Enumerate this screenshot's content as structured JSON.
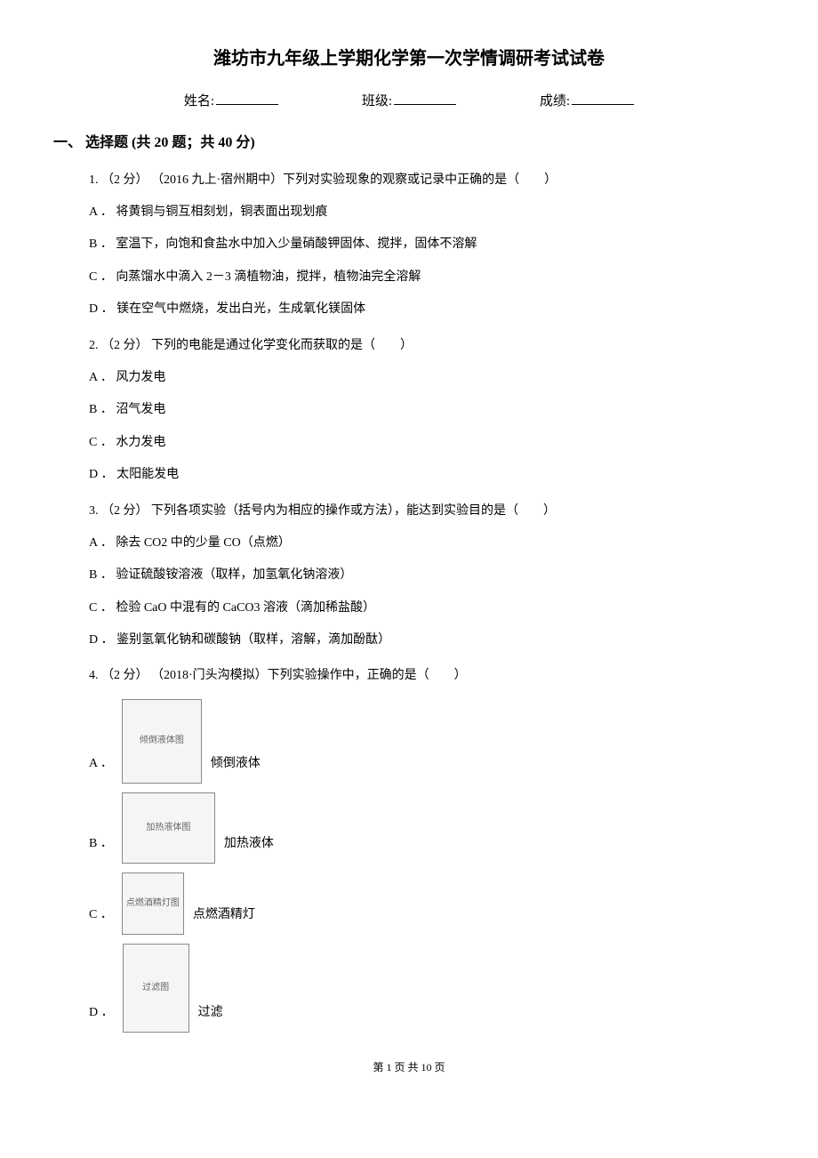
{
  "title": "潍坊市九年级上学期化学第一次学情调研考试试卷",
  "info": {
    "name_label": "姓名:",
    "class_label": "班级:",
    "score_label": "成绩:"
  },
  "section": {
    "number": "一、",
    "title": "选择题",
    "detail": "(共 20 题；共 40 分)"
  },
  "questions": [
    {
      "num": "1.",
      "points": "（2 分）",
      "source": "（2016 九上·宿州期中）",
      "stem": "下列对实验现象的观察或记录中正确的是（　　）",
      "options": [
        {
          "label": "A ．",
          "text": "将黄铜与铜互相刻划，铜表面出现划痕"
        },
        {
          "label": "B ．",
          "text": "室温下，向饱和食盐水中加入少量硝酸钾固体、搅拌，固体不溶解"
        },
        {
          "label": "C ．",
          "text": "向蒸馏水中滴入 2－3 滴植物油，搅拌，植物油完全溶解"
        },
        {
          "label": "D ．",
          "text": "镁在空气中燃烧，发出白光，生成氧化镁固体"
        }
      ]
    },
    {
      "num": "2.",
      "points": "（2 分）",
      "source": "",
      "stem": " 下列的电能是通过化学变化而获取的是（　　）",
      "options": [
        {
          "label": "A ．",
          "text": "风力发电"
        },
        {
          "label": "B ．",
          "text": "沼气发电"
        },
        {
          "label": "C ．",
          "text": "水力发电"
        },
        {
          "label": "D ．",
          "text": "太阳能发电"
        }
      ]
    },
    {
      "num": "3.",
      "points": "（2 分）",
      "source": "",
      "stem": " 下列各项实验（括号内为相应的操作或方法），能达到实验目的是（　　）",
      "options": [
        {
          "label": "A ．",
          "text": "除去 CO2 中的少量 CO（点燃）"
        },
        {
          "label": "B ．",
          "text": "验证硫酸铵溶液（取样，加氢氧化钠溶液）"
        },
        {
          "label": "C ．",
          "text": "检验 CaO 中混有的 CaCO3 溶液（滴加稀盐酸）"
        },
        {
          "label": "D ．",
          "text": "鉴别氢氧化钠和碳酸钠（取样，溶解，滴加酚酞）"
        }
      ]
    },
    {
      "num": "4.",
      "points": "（2 分）",
      "source": "（2018·门头沟模拟）",
      "stem": "下列实验操作中，正确的是（　　）",
      "image_options": [
        {
          "label": "A ．",
          "text": "倾倒液体",
          "img_class": "img-a",
          "img_desc": "倾倒液体图"
        },
        {
          "label": "B ．",
          "text": "加热液体",
          "img_class": "img-b",
          "img_desc": "加热液体图"
        },
        {
          "label": "C ．",
          "text": "点燃酒精灯",
          "img_class": "img-c",
          "img_desc": "点燃酒精灯图"
        },
        {
          "label": "D ．",
          "text": "过滤",
          "img_class": "img-d",
          "img_desc": "过滤图"
        }
      ]
    }
  ],
  "footer": "第 1 页 共 10 页"
}
